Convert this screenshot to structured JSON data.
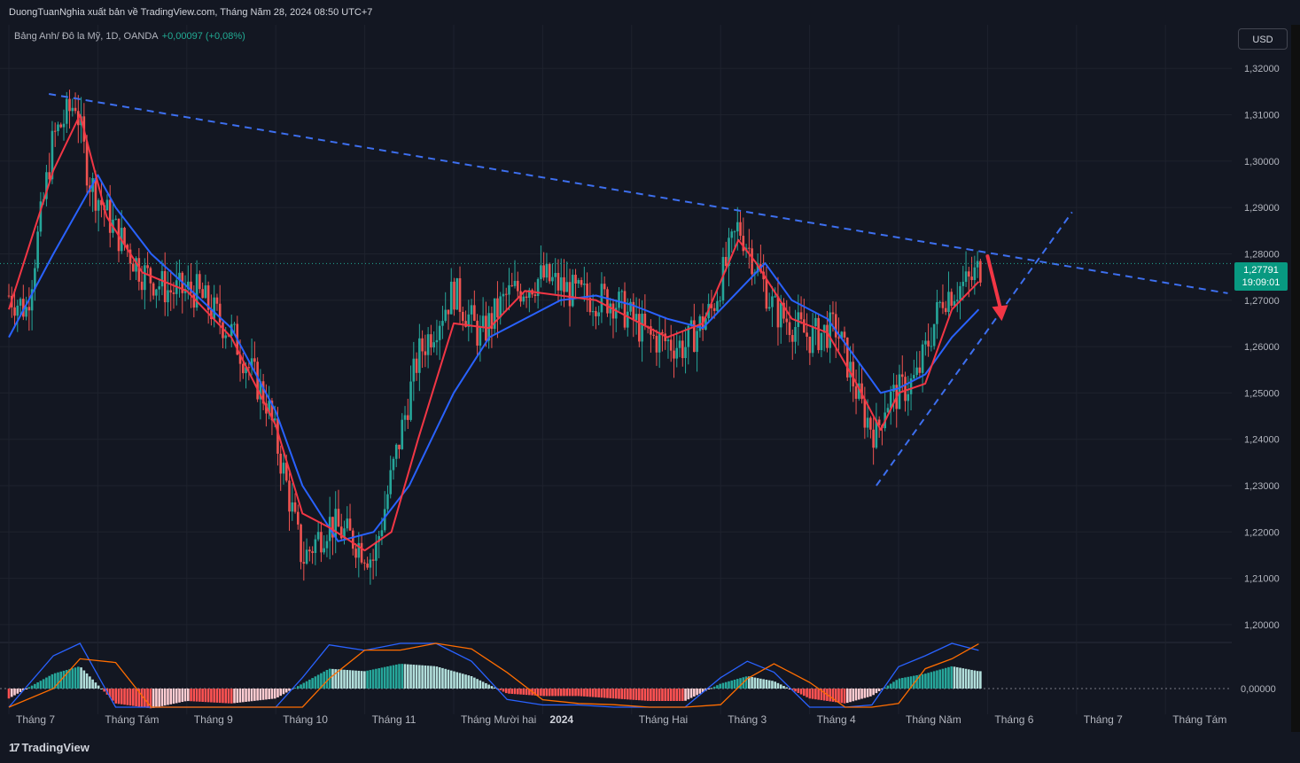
{
  "header": {
    "publisher_line": "DuongTuanNghia xuất bản về TradingView.com, Tháng Năm 28, 2024 08:50 UTC+7"
  },
  "legend": {
    "symbol_line": "Bảng Anh/ Đô la Mỹ, 1D, OANDA",
    "change": "+0,00097 (+0,08%)"
  },
  "currency_button": "USD",
  "price_tag": {
    "price": "1,27791",
    "countdown": "19:09:01"
  },
  "footer": {
    "brand": "TradingView"
  },
  "colors": {
    "background": "#131722",
    "up_candle": "#26a69a",
    "down_candle": "#ef5350",
    "fast_ma": "#f23645",
    "slow_ma": "#2962ff",
    "trendline": "#3d6fef",
    "arrow": "#f23645"
  },
  "chart_data": {
    "type": "candlestick",
    "symbol": "GBP/USD",
    "timeframe": "1D",
    "y_axis": {
      "ticks": [
        "1,32000",
        "1,31000",
        "1,30000",
        "1,29000",
        "1,28000",
        "1,27000",
        "1,26000",
        "1,25000",
        "1,24000",
        "1,23000",
        "1,22000",
        "1,21000",
        "1,20000"
      ],
      "tick_values": [
        1.32,
        1.31,
        1.3,
        1.29,
        1.28,
        1.27,
        1.26,
        1.25,
        1.24,
        1.23,
        1.22,
        1.21,
        1.2
      ],
      "range": [
        1.1975,
        1.3275
      ]
    },
    "x_axis": {
      "labels": [
        "Tháng 7",
        "Tháng Tám",
        "Tháng 9",
        "Tháng 10",
        "Tháng 11",
        "Tháng Mười hai",
        "2024",
        "Tháng Hai",
        "Tháng 3",
        "Tháng 4",
        "Tháng Năm",
        "Tháng 6",
        "Tháng 7",
        "Tháng Tám"
      ],
      "bold": [
        "2024"
      ],
      "month_index": [
        0,
        1,
        2,
        3,
        4,
        5,
        6,
        7,
        8,
        9,
        10,
        11,
        12,
        13
      ]
    },
    "price_path": {
      "month_index": [
        0,
        0.2,
        0.5,
        0.75,
        0.9,
        1.2,
        1.5,
        1.8,
        2.1,
        2.5,
        2.9,
        3.1,
        3.3,
        3.6,
        3.9,
        4.1,
        4.3,
        4.6,
        5.0,
        5.3,
        5.6,
        6.0,
        6.4,
        6.8,
        7.2,
        7.6,
        7.9,
        8.2,
        8.3,
        8.6,
        9.0,
        9.3,
        9.6,
        9.75,
        9.85,
        10.0,
        10.2,
        10.5,
        10.8,
        10.95
      ],
      "close": [
        1.271,
        1.268,
        1.305,
        1.313,
        1.296,
        1.285,
        1.276,
        1.272,
        1.272,
        1.263,
        1.248,
        1.232,
        1.214,
        1.222,
        1.218,
        1.214,
        1.232,
        1.258,
        1.272,
        1.262,
        1.271,
        1.275,
        1.271,
        1.27,
        1.262,
        1.26,
        1.268,
        1.286,
        1.282,
        1.268,
        1.262,
        1.264,
        1.246,
        1.241,
        1.248,
        1.25,
        1.253,
        1.271,
        1.274,
        1.278
      ]
    },
    "fast_ma": {
      "month_index": [
        0,
        0.5,
        0.8,
        1.1,
        1.5,
        2.0,
        2.5,
        3.0,
        3.3,
        3.6,
        4.0,
        4.3,
        4.6,
        5.0,
        5.4,
        5.8,
        6.2,
        6.6,
        7.0,
        7.4,
        7.8,
        8.2,
        8.4,
        8.8,
        9.2,
        9.5,
        9.8,
        10.0,
        10.3,
        10.6,
        10.9
      ],
      "value": [
        1.268,
        1.298,
        1.31,
        1.288,
        1.276,
        1.272,
        1.262,
        1.243,
        1.224,
        1.221,
        1.216,
        1.22,
        1.24,
        1.265,
        1.264,
        1.272,
        1.271,
        1.27,
        1.266,
        1.262,
        1.265,
        1.283,
        1.278,
        1.266,
        1.263,
        1.253,
        1.242,
        1.25,
        1.252,
        1.268,
        1.274
      ]
    },
    "slow_ma": {
      "month_index": [
        0,
        0.5,
        1.0,
        1.2,
        1.6,
        2.0,
        2.5,
        3.0,
        3.3,
        3.7,
        4.1,
        4.5,
        5.0,
        5.4,
        5.8,
        6.2,
        6.6,
        7.0,
        7.4,
        7.8,
        8.2,
        8.5,
        8.8,
        9.2,
        9.5,
        9.8,
        10.0,
        10.3,
        10.6,
        10.9
      ],
      "value": [
        1.262,
        1.28,
        1.297,
        1.29,
        1.28,
        1.273,
        1.264,
        1.246,
        1.23,
        1.218,
        1.22,
        1.23,
        1.25,
        1.262,
        1.266,
        1.27,
        1.271,
        1.269,
        1.266,
        1.264,
        1.272,
        1.278,
        1.27,
        1.266,
        1.258,
        1.25,
        1.251,
        1.254,
        1.262,
        1.268
      ]
    },
    "annotations": {
      "resistance_line": {
        "from": [
          0.45,
          1.3145
        ],
        "to": [
          13.7,
          1.2715
        ]
      },
      "support_line": {
        "from": [
          9.75,
          1.23
        ],
        "to": [
          11.95,
          1.289
        ]
      },
      "down_arrow": {
        "from": [
          11.0,
          1.2795
        ],
        "to": [
          11.15,
          1.2655
        ]
      }
    },
    "oscillator": {
      "zero_label": "0,00000",
      "month_index": [
        0,
        0.5,
        0.8,
        1.2,
        1.6,
        2.0,
        2.5,
        3.0,
        3.3,
        3.6,
        4.0,
        4.4,
        4.8,
        5.2,
        5.6,
        6.0,
        6.4,
        6.8,
        7.2,
        7.6,
        8.0,
        8.3,
        8.6,
        9.0,
        9.4,
        9.7,
        10.0,
        10.3,
        10.6,
        10.9
      ],
      "histogram": [
        -0.4,
        0.6,
        0.9,
        -0.6,
        -0.8,
        -0.5,
        -0.6,
        -0.4,
        0.2,
        0.8,
        0.7,
        1.0,
        0.9,
        0.5,
        -0.2,
        -0.3,
        -0.3,
        -0.4,
        -0.5,
        -0.5,
        0.2,
        0.5,
        0.3,
        -0.4,
        -0.6,
        -0.3,
        0.4,
        0.6,
        0.9,
        0.7
      ]
    }
  }
}
